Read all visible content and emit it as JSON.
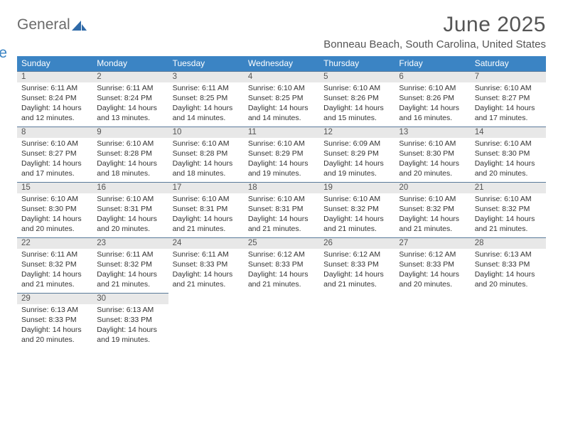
{
  "logo": {
    "text1": "General",
    "text2": "Blue"
  },
  "title": "June 2025",
  "location": "Bonneau Beach, South Carolina, United States",
  "colors": {
    "header_bg": "#3b84c4",
    "daynum_bg": "#e8e8e8",
    "daynum_border": "#5a7a9a",
    "text": "#333333",
    "title_text": "#555555"
  },
  "layout": {
    "columns": 7,
    "rows": 5,
    "first_day_column": 0
  },
  "dow": [
    "Sunday",
    "Monday",
    "Tuesday",
    "Wednesday",
    "Thursday",
    "Friday",
    "Saturday"
  ],
  "days": [
    {
      "n": 1,
      "sr": "6:11 AM",
      "ss": "8:24 PM",
      "dl": "14 hours and 12 minutes."
    },
    {
      "n": 2,
      "sr": "6:11 AM",
      "ss": "8:24 PM",
      "dl": "14 hours and 13 minutes."
    },
    {
      "n": 3,
      "sr": "6:11 AM",
      "ss": "8:25 PM",
      "dl": "14 hours and 14 minutes."
    },
    {
      "n": 4,
      "sr": "6:10 AM",
      "ss": "8:25 PM",
      "dl": "14 hours and 14 minutes."
    },
    {
      "n": 5,
      "sr": "6:10 AM",
      "ss": "8:26 PM",
      "dl": "14 hours and 15 minutes."
    },
    {
      "n": 6,
      "sr": "6:10 AM",
      "ss": "8:26 PM",
      "dl": "14 hours and 16 minutes."
    },
    {
      "n": 7,
      "sr": "6:10 AM",
      "ss": "8:27 PM",
      "dl": "14 hours and 17 minutes."
    },
    {
      "n": 8,
      "sr": "6:10 AM",
      "ss": "8:27 PM",
      "dl": "14 hours and 17 minutes."
    },
    {
      "n": 9,
      "sr": "6:10 AM",
      "ss": "8:28 PM",
      "dl": "14 hours and 18 minutes."
    },
    {
      "n": 10,
      "sr": "6:10 AM",
      "ss": "8:28 PM",
      "dl": "14 hours and 18 minutes."
    },
    {
      "n": 11,
      "sr": "6:10 AM",
      "ss": "8:29 PM",
      "dl": "14 hours and 19 minutes."
    },
    {
      "n": 12,
      "sr": "6:09 AM",
      "ss": "8:29 PM",
      "dl": "14 hours and 19 minutes."
    },
    {
      "n": 13,
      "sr": "6:10 AM",
      "ss": "8:30 PM",
      "dl": "14 hours and 20 minutes."
    },
    {
      "n": 14,
      "sr": "6:10 AM",
      "ss": "8:30 PM",
      "dl": "14 hours and 20 minutes."
    },
    {
      "n": 15,
      "sr": "6:10 AM",
      "ss": "8:30 PM",
      "dl": "14 hours and 20 minutes."
    },
    {
      "n": 16,
      "sr": "6:10 AM",
      "ss": "8:31 PM",
      "dl": "14 hours and 20 minutes."
    },
    {
      "n": 17,
      "sr": "6:10 AM",
      "ss": "8:31 PM",
      "dl": "14 hours and 21 minutes."
    },
    {
      "n": 18,
      "sr": "6:10 AM",
      "ss": "8:31 PM",
      "dl": "14 hours and 21 minutes."
    },
    {
      "n": 19,
      "sr": "6:10 AM",
      "ss": "8:32 PM",
      "dl": "14 hours and 21 minutes."
    },
    {
      "n": 20,
      "sr": "6:10 AM",
      "ss": "8:32 PM",
      "dl": "14 hours and 21 minutes."
    },
    {
      "n": 21,
      "sr": "6:10 AM",
      "ss": "8:32 PM",
      "dl": "14 hours and 21 minutes."
    },
    {
      "n": 22,
      "sr": "6:11 AM",
      "ss": "8:32 PM",
      "dl": "14 hours and 21 minutes."
    },
    {
      "n": 23,
      "sr": "6:11 AM",
      "ss": "8:32 PM",
      "dl": "14 hours and 21 minutes."
    },
    {
      "n": 24,
      "sr": "6:11 AM",
      "ss": "8:33 PM",
      "dl": "14 hours and 21 minutes."
    },
    {
      "n": 25,
      "sr": "6:12 AM",
      "ss": "8:33 PM",
      "dl": "14 hours and 21 minutes."
    },
    {
      "n": 26,
      "sr": "6:12 AM",
      "ss": "8:33 PM",
      "dl": "14 hours and 21 minutes."
    },
    {
      "n": 27,
      "sr": "6:12 AM",
      "ss": "8:33 PM",
      "dl": "14 hours and 20 minutes."
    },
    {
      "n": 28,
      "sr": "6:13 AM",
      "ss": "8:33 PM",
      "dl": "14 hours and 20 minutes."
    },
    {
      "n": 29,
      "sr": "6:13 AM",
      "ss": "8:33 PM",
      "dl": "14 hours and 20 minutes."
    },
    {
      "n": 30,
      "sr": "6:13 AM",
      "ss": "8:33 PM",
      "dl": "14 hours and 19 minutes."
    }
  ],
  "labels": {
    "sunrise": "Sunrise:",
    "sunset": "Sunset:",
    "daylight": "Daylight:"
  }
}
